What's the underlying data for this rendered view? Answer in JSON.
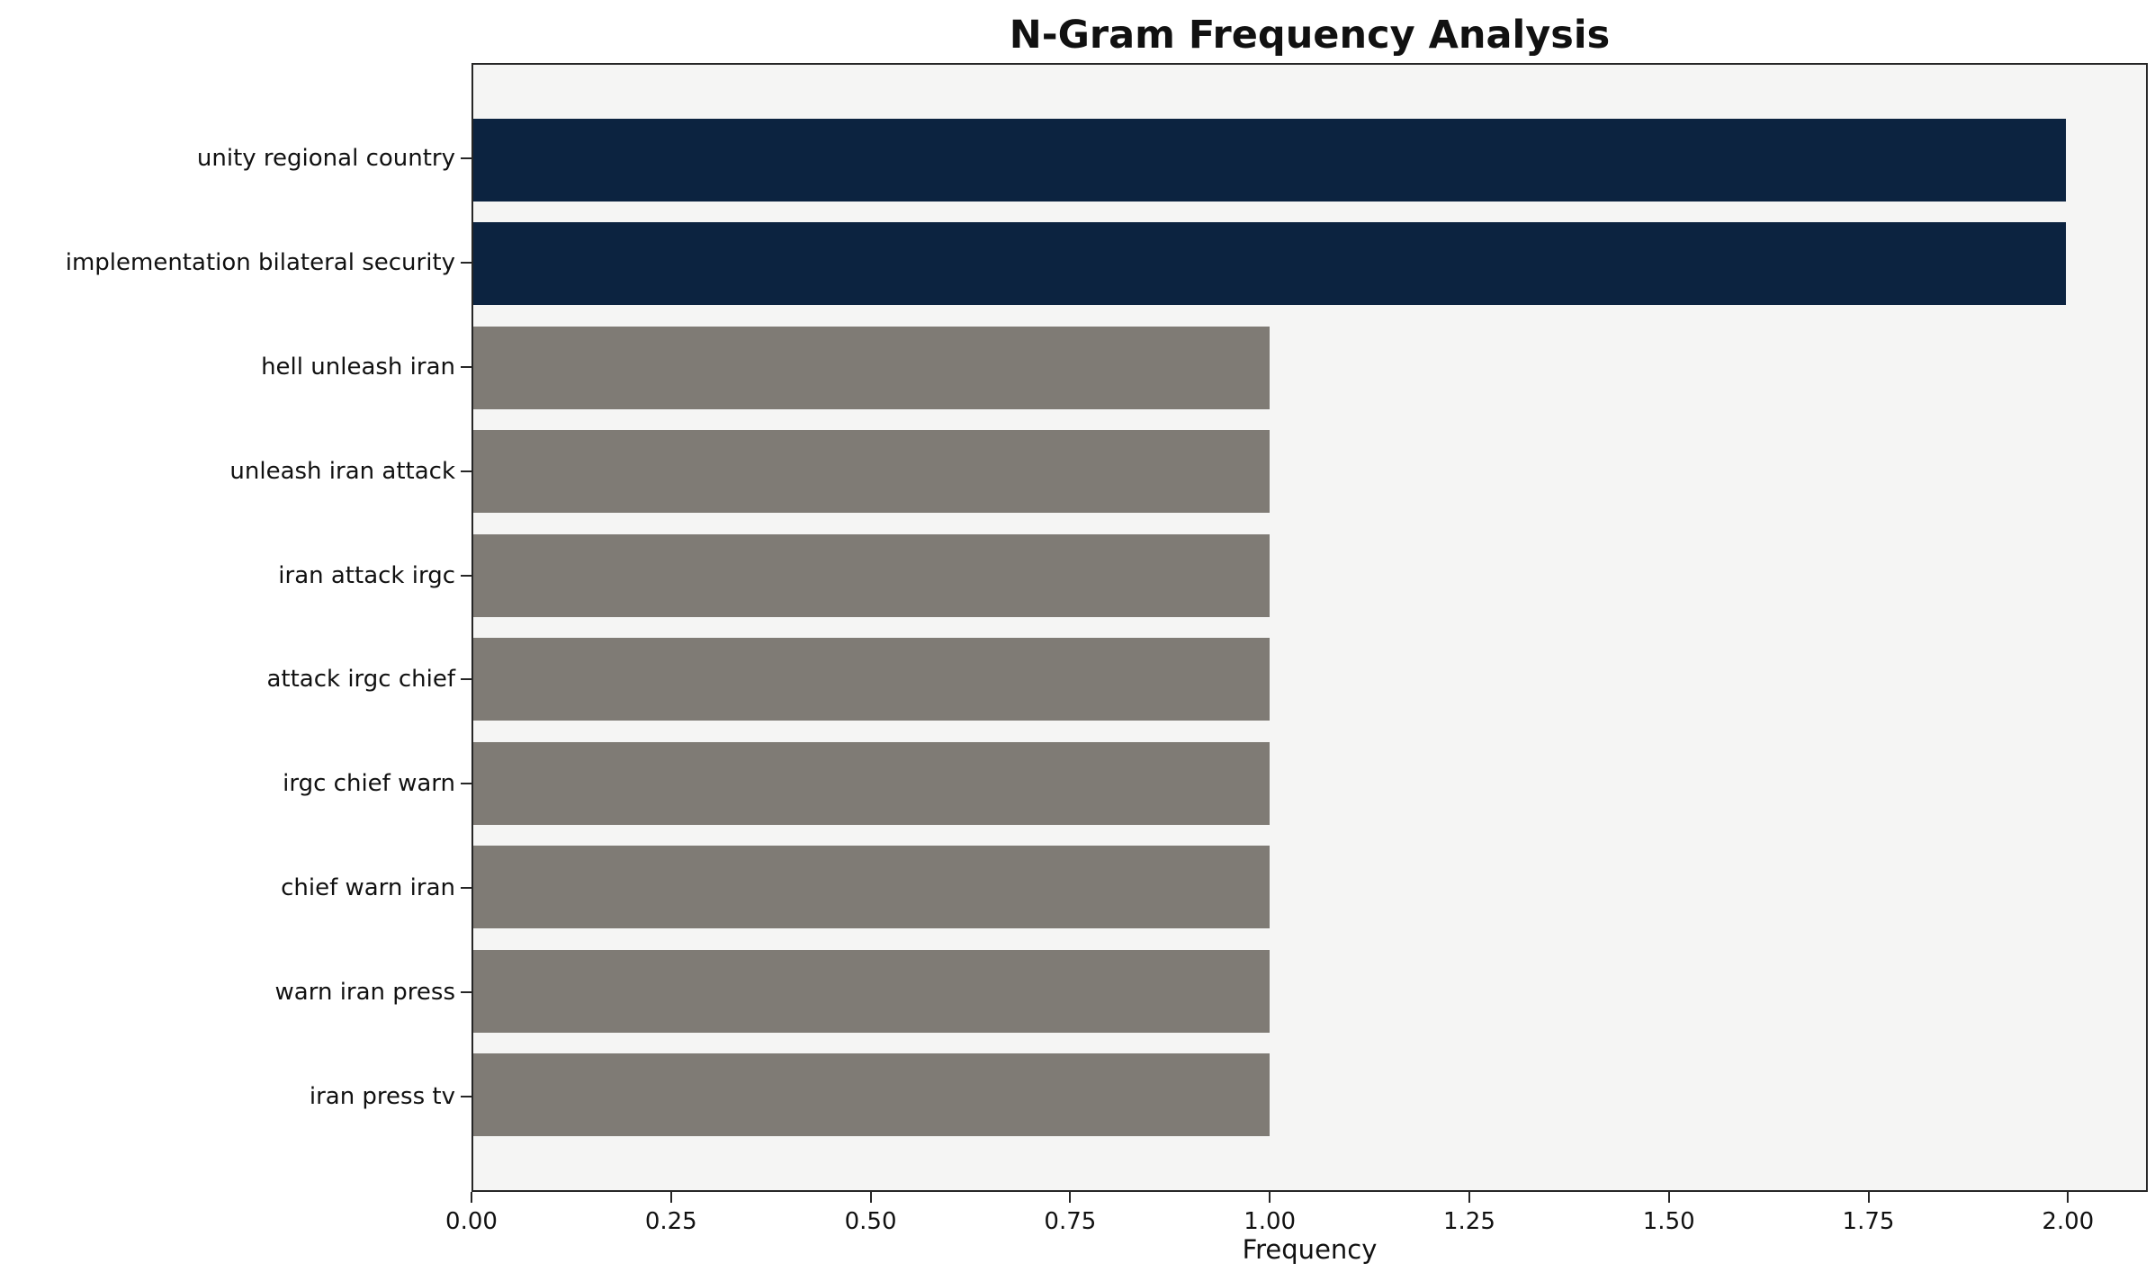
{
  "chart_data": {
    "type": "bar",
    "orientation": "horizontal",
    "title": "N-Gram Frequency Analysis",
    "xlabel": "Frequency",
    "ylabel": "",
    "categories": [
      "unity regional country",
      "implementation bilateral security",
      "hell unleash iran",
      "unleash iran attack",
      "iran attack irgc",
      "attack irgc chief",
      "irgc chief warn",
      "chief warn iran",
      "warn iran press",
      "iran press tv"
    ],
    "values": [
      2,
      2,
      1,
      1,
      1,
      1,
      1,
      1,
      1,
      1
    ],
    "bar_colors": [
      "#0c2340",
      "#0c2340",
      "#7f7b75",
      "#7f7b75",
      "#7f7b75",
      "#7f7b75",
      "#7f7b75",
      "#7f7b75",
      "#7f7b75",
      "#7f7b75"
    ],
    "xlim": [
      0,
      2.1
    ],
    "x_ticks": [
      0.0,
      0.25,
      0.5,
      0.75,
      1.0,
      1.25,
      1.5,
      1.75,
      2.0
    ],
    "x_tick_labels": [
      "0.00",
      "0.25",
      "0.50",
      "0.75",
      "1.00",
      "1.25",
      "1.50",
      "1.75",
      "2.00"
    ],
    "grid": false,
    "legend": "none",
    "plot_background": "#f5f5f4",
    "figure_background": "#ffffff",
    "highlight_color": "#0c2340",
    "base_color": "#7f7b75"
  }
}
